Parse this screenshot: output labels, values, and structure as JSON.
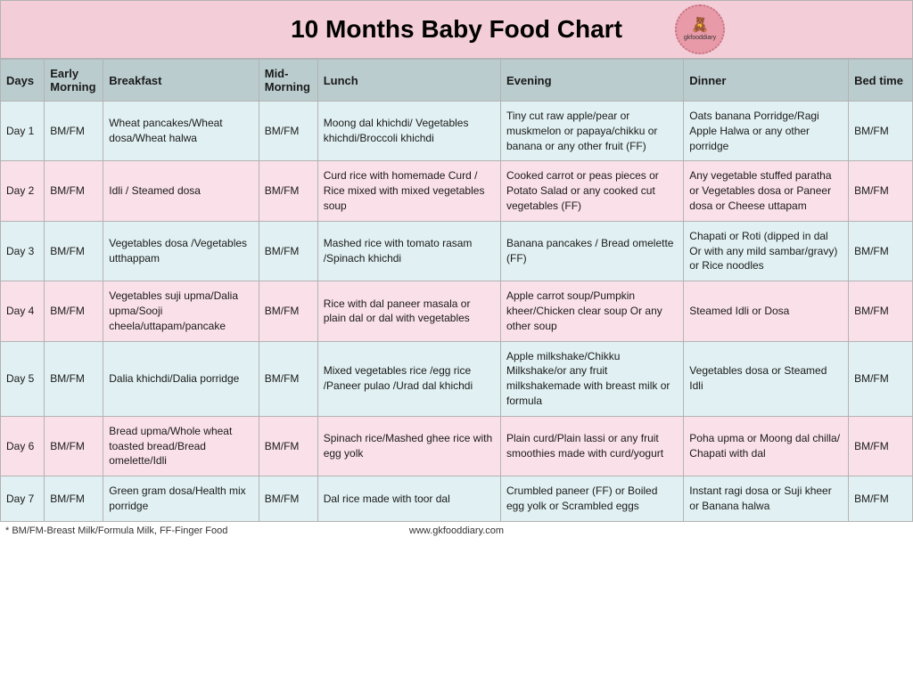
{
  "title": "10 Months Baby Food Chart",
  "logo": {
    "brand": "gkfooddiary"
  },
  "columns": [
    "Days",
    "Early Morning",
    "Breakfast",
    "Mid-Morning",
    "Lunch",
    "Evening",
    "Dinner",
    "Bed time"
  ],
  "colors": {
    "header_bg": "#f3ced8",
    "th_bg": "#bbcccf",
    "row_blue": "#e1f0f2",
    "row_pink": "#fae0e8",
    "border": "#b3b3b3",
    "logo_bg": "#e89aa8",
    "text": "#1a1a1a"
  },
  "typography": {
    "title_fontsize": 28,
    "title_weight": "bold",
    "th_fontsize": 13,
    "td_fontsize": 12
  },
  "rows": [
    {
      "day": "Day 1",
      "early": "BM/FM",
      "breakfast": "Wheat pancakes/Wheat dosa/Wheat halwa",
      "mid": "BM/FM",
      "lunch": "Moong dal khichdi/ Vegetables khichdi/Broccoli khichdi",
      "evening": "Tiny cut raw apple/pear or muskmelon or papaya/chikku or banana or any other fruit (FF)",
      "dinner": "Oats banana Porridge/Ragi Apple Halwa or any other porridge",
      "bed": "BM/FM"
    },
    {
      "day": "Day 2",
      "early": "BM/FM",
      "breakfast": "Idli / Steamed dosa",
      "mid": "BM/FM",
      "lunch": "Curd rice with homemade Curd / Rice mixed with mixed vegetables soup",
      "evening": "Cooked carrot or peas pieces or Potato Salad or any cooked cut vegetables (FF)",
      "dinner": "Any vegetable stuffed paratha or Vegetables dosa or Paneer dosa or Cheese uttapam",
      "bed": "BM/FM"
    },
    {
      "day": "Day 3",
      "early": "BM/FM",
      "breakfast": "Vegetables dosa /Vegetables utthappam",
      "mid": "BM/FM",
      "lunch": "Mashed rice with tomato rasam /Spinach khichdi",
      "evening": "Banana pancakes / Bread omelette (FF)",
      "dinner": "Chapati or Roti (dipped in dal Or with any mild sambar/gravy) or Rice noodles",
      "bed": "BM/FM"
    },
    {
      "day": "Day 4",
      "early": "BM/FM",
      "breakfast": "Vegetables suji upma/Dalia upma/Sooji cheela/uttapam/pancake",
      "mid": "BM/FM",
      "lunch": "Rice with dal paneer masala or plain dal or dal with vegetables",
      "evening": "Apple carrot soup/Pumpkin kheer/Chicken clear soup Or any other soup",
      "dinner": "Steamed Idli or Dosa",
      "bed": "BM/FM"
    },
    {
      "day": "Day 5",
      "early": "BM/FM",
      "breakfast": "Dalia khichdi/Dalia porridge",
      "mid": "BM/FM",
      "lunch": "Mixed vegetables rice /egg rice /Paneer pulao /Urad dal khichdi",
      "evening": "Apple milkshake/Chikku Milkshake/or any fruit milkshakemade with breast milk or formula",
      "dinner": "Vegetables dosa or Steamed Idli",
      "bed": "BM/FM"
    },
    {
      "day": "Day 6",
      "early": "BM/FM",
      "breakfast": "Bread upma/Whole wheat toasted bread/Bread omelette/Idli",
      "mid": "BM/FM",
      "lunch": "Spinach rice/Mashed ghee rice with egg yolk",
      "evening": "Plain curd/Plain lassi or any fruit smoothies made with curd/yogurt",
      "dinner": "Poha upma or Moong dal chilla/ Chapati with dal",
      "bed": "BM/FM"
    },
    {
      "day": "Day 7",
      "early": "BM/FM",
      "breakfast": "Green gram dosa/Health mix porridge",
      "mid": "BM/FM",
      "lunch": "Dal rice made with toor dal",
      "evening": "Crumbled paneer (FF) or Boiled egg yolk or Scrambled eggs",
      "dinner": "Instant ragi dosa or Suji kheer or Banana halwa",
      "bed": "BM/FM"
    }
  ],
  "footer": {
    "note": "* BM/FM-Breast Milk/Formula Milk, FF-Finger Food",
    "url": "www.gkfooddiary.com"
  }
}
